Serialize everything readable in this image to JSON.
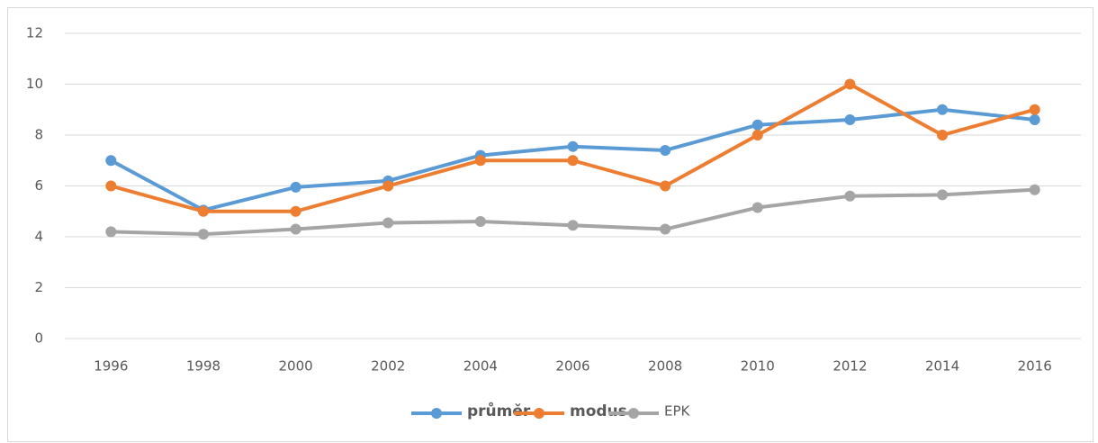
{
  "chart_data": {
    "type": "line",
    "categories": [
      "1996",
      "1998",
      "2000",
      "2002",
      "2004",
      "2006",
      "2008",
      "2010",
      "2012",
      "2014",
      "2016"
    ],
    "series": [
      {
        "name": "průměr",
        "color": "#5b9bd5",
        "values": [
          7.0,
          5.05,
          5.95,
          6.2,
          7.2,
          7.55,
          7.4,
          8.4,
          8.6,
          9.0,
          8.6
        ]
      },
      {
        "name": "modus",
        "color": "#ed7d31",
        "values": [
          6,
          5,
          5,
          6,
          7,
          7,
          6,
          8,
          10,
          8,
          9
        ]
      },
      {
        "name": "EPK",
        "color": "#a5a5a5",
        "values": [
          4.2,
          4.1,
          4.3,
          4.55,
          4.6,
          4.45,
          4.3,
          5.15,
          5.6,
          5.65,
          5.85
        ]
      }
    ],
    "ylim": [
      0,
      12
    ],
    "yticks": [
      0,
      2,
      4,
      6,
      8,
      10,
      12
    ],
    "grid": true,
    "legend": "bottom"
  }
}
